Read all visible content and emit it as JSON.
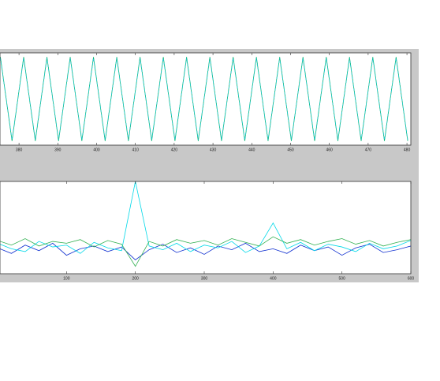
{
  "chart_data": [
    {
      "type": "line",
      "x": [
        375.2,
        378.2,
        381.2,
        384.2,
        387.2,
        390.2,
        393.2,
        396.2,
        399.2,
        402.2,
        405.2,
        408.2,
        411.2,
        414.2,
        417.2,
        420.2,
        423.2,
        426.2,
        429.2,
        432.2,
        435.2,
        438.2,
        441.2,
        444.2,
        447.2,
        450.2,
        453.2,
        456.2,
        459.2,
        462.2,
        465.2,
        468.2,
        471.2,
        474.2,
        477.2,
        480.2
      ],
      "series": [
        {
          "color": "#00b070",
          "dash": false,
          "values": [
            1,
            -1,
            1,
            -1,
            1,
            -1,
            1,
            -1,
            1,
            -1,
            1,
            -1,
            1,
            -1,
            1,
            -1,
            1,
            -1,
            1,
            -1,
            1,
            -1,
            1,
            -1,
            1,
            -1,
            1,
            -1,
            1,
            -1,
            1,
            -1,
            1,
            -1,
            1,
            -1
          ]
        },
        {
          "color": "#20c8d0",
          "dash": true,
          "values": [
            0.97,
            -0.97,
            0.97,
            -0.97,
            0.97,
            -0.97,
            0.97,
            -0.97,
            0.97,
            -0.97,
            0.97,
            -0.97,
            0.97,
            -0.97,
            0.97,
            -0.97,
            0.97,
            -0.97,
            0.97,
            -0.97,
            0.97,
            -0.97,
            0.97,
            -0.97,
            0.97,
            -0.97,
            0.97,
            -0.97,
            0.97,
            -0.97,
            0.97,
            -0.97,
            0.97,
            -0.97,
            0.97,
            -0.97
          ]
        }
      ],
      "xlim": [
        375.1,
        481
      ],
      "xticks": [
        380,
        390,
        400,
        410,
        420,
        430,
        440,
        450,
        460,
        470,
        480
      ],
      "ylim": [
        -1.1,
        1.1
      ]
    },
    {
      "type": "line",
      "x": [
        0,
        20,
        40,
        60,
        80,
        100,
        120,
        140,
        160,
        180,
        200,
        220,
        240,
        260,
        280,
        300,
        320,
        340,
        360,
        380,
        400,
        420,
        440,
        460,
        480,
        500,
        520,
        540,
        560,
        580,
        600
      ],
      "series": [
        {
          "color": "#1030d0",
          "dash": false,
          "values": [
            0.28,
            0.22,
            0.31,
            0.25,
            0.33,
            0.2,
            0.27,
            0.3,
            0.24,
            0.29,
            0.15,
            0.26,
            0.32,
            0.23,
            0.28,
            0.21,
            0.3,
            0.26,
            0.33,
            0.24,
            0.27,
            0.22,
            0.31,
            0.25,
            0.29,
            0.2,
            0.28,
            0.32,
            0.23,
            0.26,
            0.3
          ]
        },
        {
          "color": "#00d8e8",
          "dash": false,
          "values": [
            0.33,
            0.27,
            0.24,
            0.35,
            0.29,
            0.31,
            0.22,
            0.34,
            0.28,
            0.25,
            1.0,
            0.3,
            0.26,
            0.33,
            0.24,
            0.31,
            0.28,
            0.35,
            0.23,
            0.3,
            0.55,
            0.27,
            0.34,
            0.25,
            0.32,
            0.29,
            0.24,
            0.33,
            0.27,
            0.3,
            0.36
          ]
        },
        {
          "color": "#30b050",
          "dash": false,
          "values": [
            0.36,
            0.31,
            0.38,
            0.3,
            0.35,
            0.33,
            0.37,
            0.29,
            0.36,
            0.32,
            0.08,
            0.35,
            0.3,
            0.37,
            0.33,
            0.36,
            0.31,
            0.38,
            0.34,
            0.3,
            0.4,
            0.33,
            0.37,
            0.31,
            0.35,
            0.38,
            0.32,
            0.36,
            0.3,
            0.34,
            0.37
          ]
        }
      ],
      "xlim": [
        0,
        600
      ],
      "xticks": [
        100,
        200,
        300,
        400,
        500,
        600
      ],
      "ylim": [
        0,
        1
      ]
    }
  ]
}
